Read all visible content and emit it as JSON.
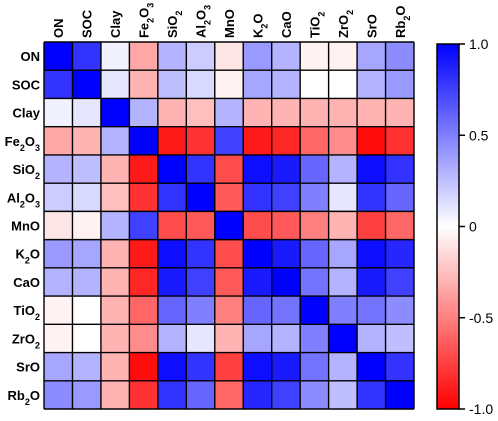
{
  "chart_data": {
    "type": "heatmap",
    "variables": [
      {
        "base": "ON",
        "sub": "",
        "tail": ""
      },
      {
        "base": "SOC",
        "sub": "",
        "tail": ""
      },
      {
        "base": "Clay",
        "sub": "",
        "tail": ""
      },
      {
        "base": "Fe",
        "sub": "2",
        "tail": "O",
        "sub2": "3"
      },
      {
        "base": "SiO",
        "sub": "2",
        "tail": ""
      },
      {
        "base": "Al",
        "sub": "2",
        "tail": "O",
        "sub2": "3"
      },
      {
        "base": "MnO",
        "sub": "",
        "tail": ""
      },
      {
        "base": "K",
        "sub": "2",
        "tail": "O"
      },
      {
        "base": "CaO",
        "sub": "",
        "tail": ""
      },
      {
        "base": "TiO",
        "sub": "2",
        "tail": ""
      },
      {
        "base": "ZrO",
        "sub": "2",
        "tail": ""
      },
      {
        "base": "SrO",
        "sub": "",
        "tail": ""
      },
      {
        "base": "Rb",
        "sub": "2",
        "tail": "O"
      }
    ],
    "matrix": [
      [
        1.0,
        0.8,
        0.05,
        -0.35,
        0.3,
        0.2,
        -0.1,
        0.4,
        0.3,
        -0.05,
        -0.05,
        0.35,
        0.45
      ],
      [
        0.8,
        1.0,
        0.1,
        -0.3,
        0.25,
        0.15,
        -0.05,
        0.35,
        0.3,
        0.0,
        0.0,
        0.3,
        0.4
      ],
      [
        0.05,
        0.1,
        1.0,
        0.3,
        -0.3,
        -0.25,
        0.3,
        -0.3,
        -0.3,
        -0.3,
        -0.3,
        -0.3,
        -0.3
      ],
      [
        -0.35,
        -0.3,
        0.3,
        1.0,
        -0.9,
        -0.8,
        0.75,
        -0.9,
        -0.85,
        -0.6,
        -0.45,
        -0.95,
        -0.8
      ],
      [
        0.3,
        0.25,
        -0.3,
        -0.9,
        1.0,
        0.8,
        -0.7,
        0.95,
        0.9,
        0.6,
        0.3,
        0.95,
        0.8
      ],
      [
        0.2,
        0.15,
        -0.25,
        -0.8,
        0.8,
        1.0,
        -0.65,
        0.8,
        0.75,
        0.5,
        0.1,
        0.8,
        0.6
      ],
      [
        -0.1,
        -0.05,
        0.3,
        0.75,
        -0.7,
        -0.65,
        1.0,
        -0.7,
        -0.65,
        -0.5,
        -0.3,
        -0.75,
        -0.6
      ],
      [
        0.4,
        0.35,
        -0.3,
        -0.9,
        0.95,
        0.8,
        -0.7,
        1.0,
        0.9,
        0.6,
        0.35,
        0.95,
        0.85
      ],
      [
        0.3,
        0.3,
        -0.3,
        -0.85,
        0.9,
        0.75,
        -0.65,
        0.9,
        1.0,
        0.55,
        0.3,
        0.9,
        0.75
      ],
      [
        -0.05,
        0.0,
        -0.3,
        -0.6,
        0.6,
        0.5,
        -0.5,
        0.6,
        0.55,
        1.0,
        0.5,
        0.55,
        0.45
      ],
      [
        -0.05,
        0.0,
        -0.3,
        -0.45,
        0.3,
        0.1,
        -0.3,
        0.35,
        0.3,
        0.5,
        1.0,
        0.3,
        0.25
      ],
      [
        0.35,
        0.3,
        -0.3,
        -0.95,
        0.95,
        0.8,
        -0.75,
        0.95,
        0.9,
        0.55,
        0.3,
        1.0,
        0.8
      ],
      [
        0.45,
        0.4,
        -0.3,
        -0.8,
        0.8,
        0.6,
        -0.6,
        0.85,
        0.75,
        0.45,
        0.25,
        0.8,
        1.0
      ]
    ],
    "colorbar": {
      "range": [
        -1.0,
        1.0
      ],
      "ticks": [
        1.0,
        0.5,
        0,
        -0.5,
        -1.0
      ],
      "tick_labels": [
        "1.0",
        "0.5",
        "0",
        "-0.5",
        "-1.0"
      ],
      "colors": {
        "negative": "#ff0000",
        "zero": "#ffffff",
        "positive": "#0000ff"
      }
    },
    "grid": true
  }
}
